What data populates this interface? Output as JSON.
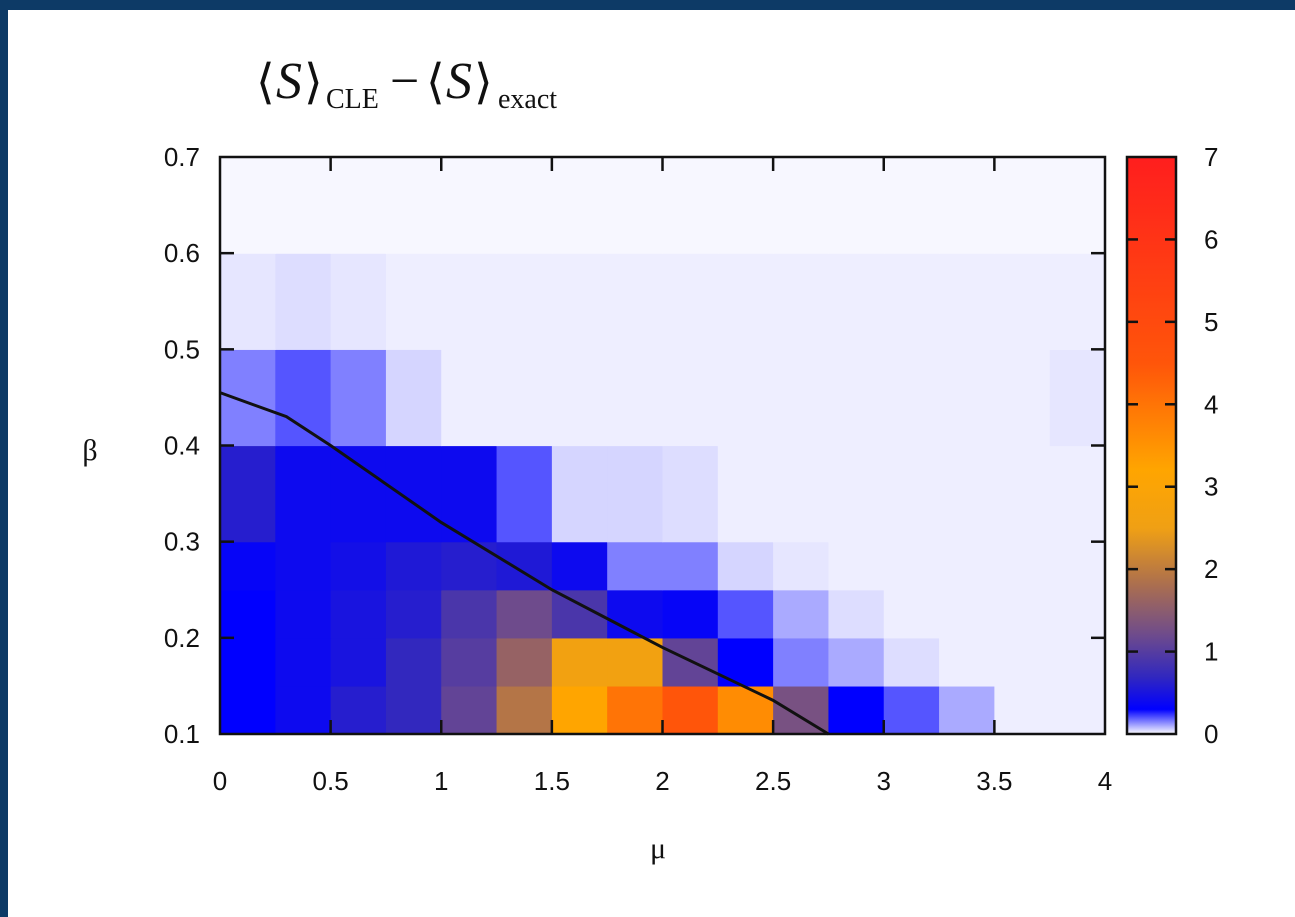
{
  "chart_data": {
    "type": "heatmap",
    "title": {
      "part1": "S",
      "sub1": "CLE",
      "minus": "−",
      "part2": "S",
      "sub2": "exact"
    },
    "xlabel": "μ",
    "ylabel": "β",
    "xlim": [
      0,
      4
    ],
    "ylim": [
      0.1,
      0.7
    ],
    "x_ticks": [
      "0",
      "0.5",
      "1",
      "1.5",
      "2",
      "2.5",
      "3",
      "3.5",
      "4"
    ],
    "y_ticks": [
      "0.1",
      "0.2",
      "0.3",
      "0.4",
      "0.5",
      "0.6",
      "0.7"
    ],
    "colorbar": {
      "range": [
        0,
        7
      ],
      "ticks": [
        "0",
        "1",
        "2",
        "3",
        "4",
        "5",
        "6",
        "7"
      ]
    },
    "mu_bin_width": 0.25,
    "beta_bins": [
      [
        0.1,
        0.15
      ],
      [
        0.15,
        0.2
      ],
      [
        0.2,
        0.25
      ],
      [
        0.25,
        0.3
      ],
      [
        0.3,
        0.4
      ],
      [
        0.4,
        0.5
      ],
      [
        0.5,
        0.6
      ],
      [
        0.6,
        0.7
      ]
    ],
    "values": [
      [
        0.3,
        0.4,
        0.6,
        0.7,
        1.1,
        1.9,
        3.2,
        4.0,
        4.5,
        3.6,
        1.3,
        0.3,
        0.2,
        0.1,
        0.02,
        0.02
      ],
      [
        0.3,
        0.4,
        0.5,
        0.7,
        1.0,
        1.6,
        2.6,
        2.6,
        1.1,
        0.3,
        0.15,
        0.1,
        0.04,
        0.02,
        0.02,
        0.02
      ],
      [
        0.3,
        0.4,
        0.5,
        0.6,
        0.9,
        1.2,
        0.9,
        0.4,
        0.35,
        0.2,
        0.1,
        0.04,
        0.02,
        0.02,
        0.02,
        0.02
      ],
      [
        0.35,
        0.4,
        0.45,
        0.55,
        0.6,
        0.55,
        0.4,
        0.15,
        0.15,
        0.05,
        0.03,
        0.02,
        0.02,
        0.02,
        0.02,
        0.02
      ],
      [
        0.6,
        0.4,
        0.4,
        0.4,
        0.4,
        0.2,
        0.05,
        0.05,
        0.04,
        0.02,
        0.02,
        0.02,
        0.02,
        0.02,
        0.02,
        0.02
      ],
      [
        0.15,
        0.2,
        0.15,
        0.05,
        0.02,
        0.02,
        0.02,
        0.02,
        0.02,
        0.02,
        0.02,
        0.02,
        0.02,
        0.02,
        0.02,
        0.03
      ],
      [
        0.03,
        0.04,
        0.03,
        0.02,
        0.02,
        0.02,
        0.02,
        0.02,
        0.02,
        0.02,
        0.02,
        0.02,
        0.02,
        0.02,
        0.02,
        0.02
      ],
      [
        0.01,
        0.01,
        0.01,
        0.01,
        0.01,
        0.01,
        0.01,
        0.01,
        0.01,
        0.01,
        0.01,
        0.01,
        0.01,
        0.01,
        0.01,
        0.01
      ]
    ],
    "line": {
      "x": [
        0.0,
        0.3,
        0.5,
        1.0,
        1.5,
        2.0,
        2.5,
        2.75
      ],
      "y": [
        0.455,
        0.43,
        0.4,
        0.32,
        0.25,
        0.19,
        0.135,
        0.1
      ]
    }
  }
}
